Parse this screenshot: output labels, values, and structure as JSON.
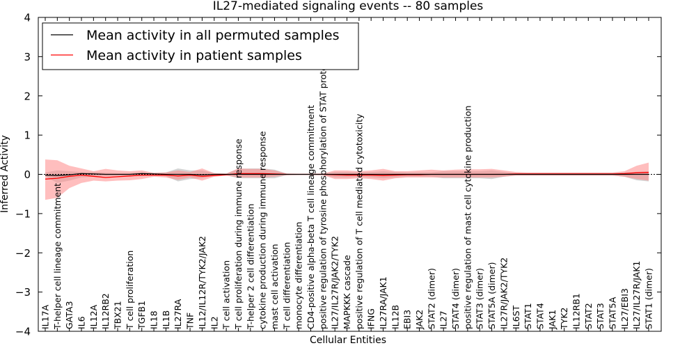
{
  "chart_data": {
    "type": "line",
    "title": "IL27-mediated signaling events -- 80 samples",
    "xlabel": "Cellular Entities",
    "ylabel": "Inferred Activity",
    "ylim": [
      -4,
      4
    ],
    "yticks": [
      "4",
      "3",
      "2",
      "1",
      "0",
      "−1",
      "−2",
      "−3",
      "−4"
    ],
    "legend_position": "top-left",
    "colors": {
      "permuted": "#000000",
      "patient": "#ff0000",
      "band_patient": "#ff8888",
      "band_permuted": "#a0a0a0"
    },
    "categories": [
      "IL17A",
      "T-helper cell lineage commitment",
      "GATA3",
      "IL6",
      "IL12A",
      "IL12RB2",
      "TBX21",
      "T cell proliferation",
      "TGFB1",
      "IL18",
      "IL1B",
      "IL27RA",
      "TNF",
      "IL12/IL12R/TYK2/JAK2",
      "IL2",
      "T cell activation",
      "T cell proliferation during immune response",
      "T-helper 2 cell differentiation",
      "cytokine production during immune response",
      "mast cell activation",
      "T cell differentiation",
      "monocyte differentiation",
      "CD4-positive alpha-beta T cell lineage commitment",
      "positive regulation of tyrosine phosphorylation of STAT protein",
      "IL27/IL27R/JAK2/TYK2",
      "MAPKKK cascade",
      "positive regulation of T cell mediated cytotoxicity",
      "IFNG",
      "IL27RA/JAK1",
      "IL12B",
      "EBI3",
      "JAK2",
      "STAT2 (dimer)",
      "IL27",
      "STAT4 (dimer)",
      "positive regulation of mast cell cytokine production",
      "STAT3 (dimer)",
      "STAT5A (dimer)",
      "IL27R/JAK2/TYK2",
      "IL6ST",
      "STAT1",
      "STAT4",
      "JAK1",
      "TYK2",
      "IL12RB1",
      "STAT2",
      "STAT3",
      "STAT5A",
      "IL27/EBI3",
      "IL27/IL27R/JAK1",
      "STAT1 (dimer)"
    ],
    "series": [
      {
        "name": "Mean activity in all permuted samples",
        "color": "#000000",
        "values": [
          -0.02,
          -0.03,
          -0.01,
          0.02,
          0.01,
          0,
          0,
          0,
          0.02,
          0.01,
          0,
          0,
          0,
          -0.01,
          0,
          0,
          0,
          0,
          0,
          0,
          0,
          0,
          0,
          0,
          0,
          0,
          0,
          0,
          0,
          0,
          0,
          0,
          0,
          0,
          0,
          0,
          0,
          0,
          0,
          0,
          0,
          0,
          0,
          0,
          0,
          0,
          0,
          0,
          0,
          0,
          0
        ]
      },
      {
        "name": "Mean activity in patient samples",
        "color": "#ff0000",
        "values": [
          -0.12,
          -0.1,
          -0.05,
          -0.02,
          -0.05,
          -0.08,
          -0.06,
          -0.04,
          -0.02,
          -0.02,
          -0.02,
          -0.04,
          -0.02,
          -0.05,
          -0.03,
          -0.01,
          0.02,
          0.02,
          0.02,
          0.01,
          0,
          0,
          0,
          0,
          -0.01,
          -0.02,
          -0.02,
          -0.02,
          -0.03,
          -0.02,
          -0.01,
          -0.01,
          0,
          0,
          0,
          0,
          0,
          0,
          0,
          0.01,
          0.01,
          0.01,
          0.01,
          0.01,
          0.01,
          0.01,
          0.01,
          0.01,
          0.02,
          0.04,
          0.05
        ]
      }
    ],
    "band_patient": {
      "upper": [
        0.38,
        0.36,
        0.22,
        0.15,
        0.08,
        0.14,
        0.1,
        0.08,
        0.1,
        0.04,
        0.05,
        0.1,
        0.06,
        0.15,
        0.03,
        0.02,
        0.15,
        0.14,
        0.14,
        0.1,
        0.02,
        0.01,
        0.01,
        0.02,
        0.1,
        0.1,
        0.08,
        0.1,
        0.14,
        0.08,
        0.08,
        0.1,
        0.12,
        0.1,
        0.12,
        0.13,
        0.13,
        0.14,
        0.1,
        0.06,
        0.05,
        0.05,
        0.05,
        0.05,
        0.05,
        0.05,
        0.05,
        0.05,
        0.08,
        0.22,
        0.3
      ],
      "lower": [
        -0.65,
        -0.6,
        -0.35,
        -0.22,
        -0.16,
        -0.18,
        -0.16,
        -0.15,
        -0.12,
        -0.06,
        -0.08,
        -0.14,
        -0.08,
        -0.16,
        -0.06,
        -0.03,
        -0.08,
        -0.08,
        -0.08,
        -0.06,
        -0.02,
        -0.01,
        -0.01,
        -0.02,
        -0.12,
        -0.12,
        -0.1,
        -0.12,
        -0.16,
        -0.1,
        -0.08,
        -0.08,
        -0.08,
        -0.08,
        -0.08,
        -0.08,
        -0.08,
        -0.08,
        -0.06,
        -0.03,
        -0.03,
        -0.03,
        -0.03,
        -0.03,
        -0.03,
        -0.03,
        -0.03,
        -0.03,
        -0.06,
        -0.12,
        -0.16
      ]
    },
    "band_permuted": {
      "upper": [
        0.05,
        0.1,
        0.08,
        0.06,
        0.06,
        0.04,
        0.03,
        0.03,
        0.05,
        0.03,
        0.05,
        0.15,
        0.1,
        0.1,
        0.03,
        0.02,
        0.14,
        0.15,
        0.15,
        0.12,
        0.02,
        0.01,
        0.01,
        0.02,
        0.06,
        0.06,
        0.05,
        0.06,
        0.08,
        0.06,
        0.05,
        0.05,
        0.05,
        0.08,
        0.08,
        0.08,
        0.08,
        0.1,
        0.06,
        0.03,
        0.03,
        0.03,
        0.03,
        0.03,
        0.03,
        0.03,
        0.03,
        0.03,
        0.05,
        0.06,
        0.08
      ],
      "lower": [
        -0.05,
        -0.22,
        -0.16,
        -0.08,
        -0.06,
        -0.04,
        -0.03,
        -0.03,
        -0.05,
        -0.03,
        -0.05,
        -0.18,
        -0.12,
        -0.1,
        -0.03,
        -0.02,
        -0.1,
        -0.1,
        -0.1,
        -0.1,
        -0.02,
        -0.01,
        -0.01,
        -0.02,
        -0.08,
        -0.08,
        -0.06,
        -0.08,
        -0.1,
        -0.08,
        -0.06,
        -0.06,
        -0.06,
        -0.1,
        -0.1,
        -0.1,
        -0.1,
        -0.12,
        -0.06,
        -0.03,
        -0.03,
        -0.03,
        -0.03,
        -0.03,
        -0.03,
        -0.03,
        -0.03,
        -0.03,
        -0.06,
        -0.15,
        -0.18
      ]
    }
  }
}
